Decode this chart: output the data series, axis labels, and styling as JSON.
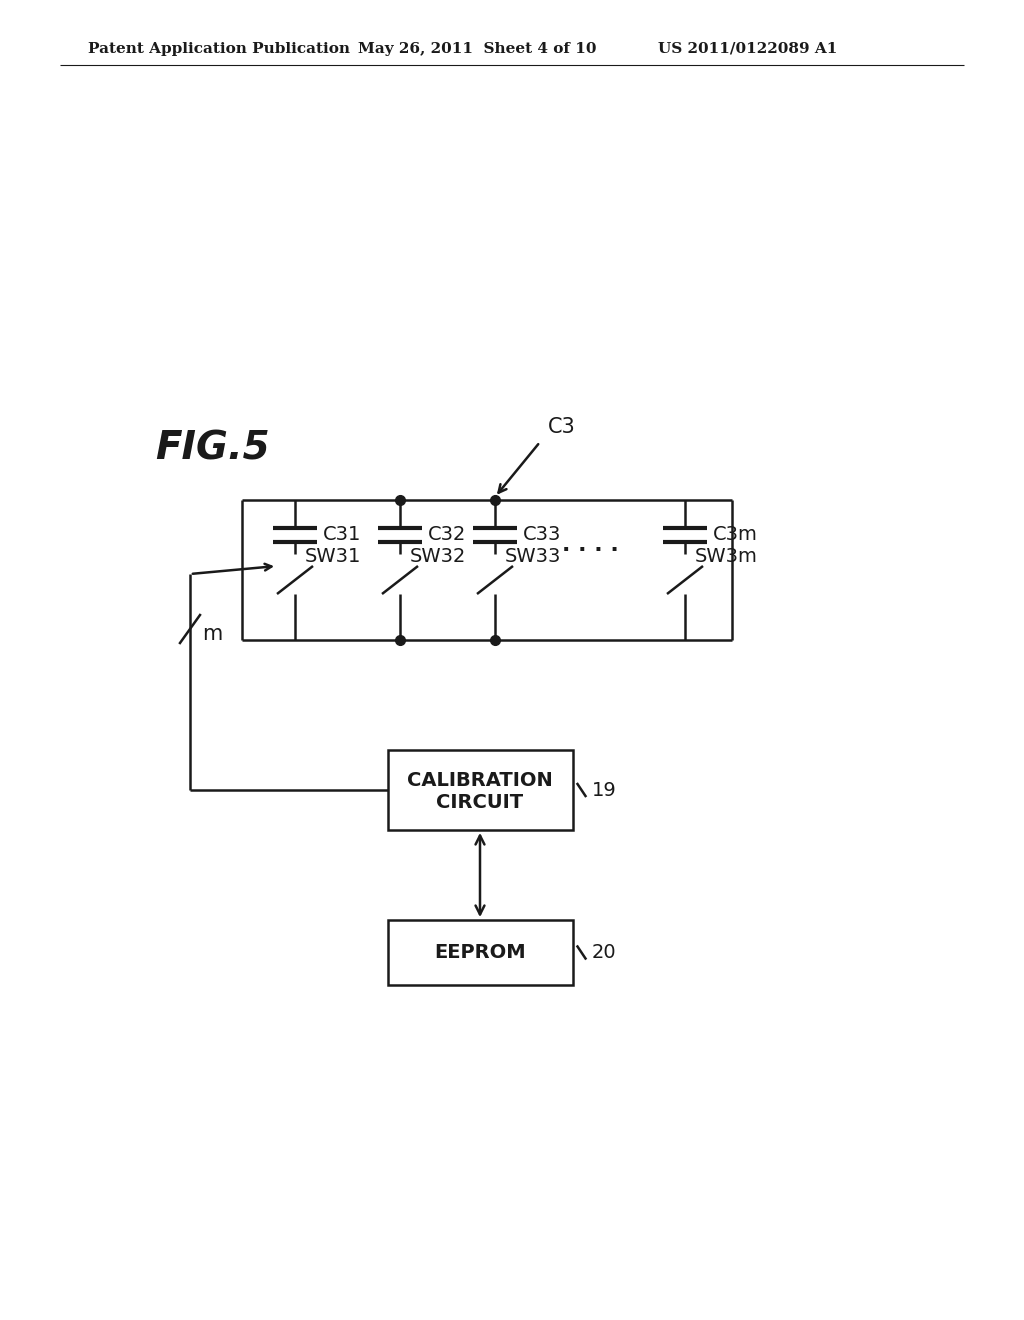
{
  "background_color": "#ffffff",
  "header_left": "Patent Application Publication",
  "header_mid": "May 26, 2011  Sheet 4 of 10",
  "header_right": "US 2011/0122089 A1",
  "fig_label": "FIG.5",
  "c3_label": "C3",
  "cap_labels": [
    "C31",
    "C32",
    "C33",
    "C3m"
  ],
  "sw_labels": [
    "SW31",
    "SW32",
    "SW33",
    "SW3m"
  ],
  "m_label": "m",
  "cal_box_text_line1": "CALIBRATION",
  "cal_box_text_line2": "CIRCUIT",
  "cal_label": "19",
  "eeprom_box_text": "EEPROM",
  "eeprom_label": "20",
  "line_color": "#1a1a1a",
  "text_color": "#1a1a1a"
}
